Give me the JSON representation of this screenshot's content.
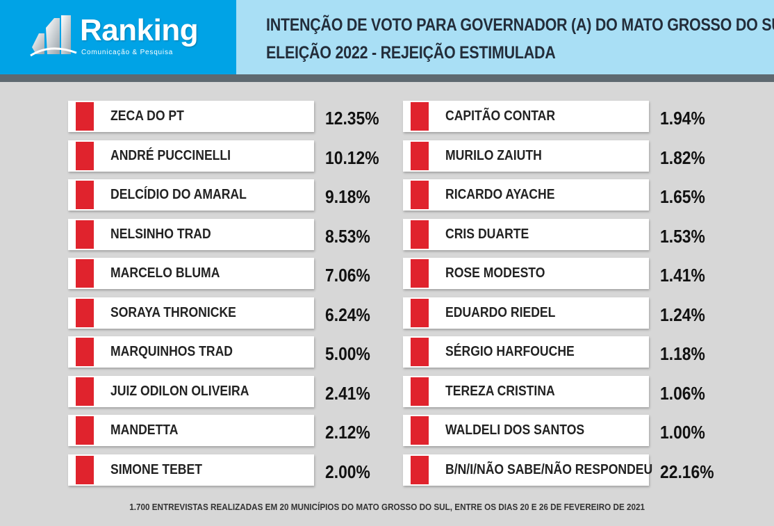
{
  "header": {
    "logo_text": "Ranking",
    "logo_tagline": "Comunicação & Pesquisa",
    "title_line1": "INTENÇÃO DE VOTO PARA GOVERNADOR (A) DO MATO GROSSO DO SUL",
    "title_line2": "ELEIÇÃO 2022 - REJEIÇÃO ESTIMULADA"
  },
  "colors": {
    "accent_red": "#e0232d",
    "logo_blue": "#00a3e6",
    "title_blue": "#a9dff5",
    "background": "#d7d7d7"
  },
  "left_column": [
    {
      "name": "ZECA DO PT",
      "value": "12.35%"
    },
    {
      "name": "ANDRÉ PUCCINELLI",
      "value": "10.12%"
    },
    {
      "name": "DELCÍDIO DO AMARAL",
      "value": "9.18%"
    },
    {
      "name": "NELSINHO TRAD",
      "value": "8.53%"
    },
    {
      "name": "MARCELO BLUMA",
      "value": "7.06%"
    },
    {
      "name": "SORAYA THRONICKE",
      "value": "6.24%"
    },
    {
      "name": "MARQUINHOS TRAD",
      "value": "5.00%"
    },
    {
      "name": "JUIZ ODILON OLIVEIRA",
      "value": "2.41%"
    },
    {
      "name": "MANDETTA",
      "value": "2.12%"
    },
    {
      "name": "SIMONE TEBET",
      "value": "2.00%"
    }
  ],
  "right_column": [
    {
      "name": "CAPITÃO CONTAR",
      "value": "1.94%"
    },
    {
      "name": "MURILO ZAIUTH",
      "value": "1.82%"
    },
    {
      "name": "RICARDO AYACHE",
      "value": "1.65%"
    },
    {
      "name": "CRIS DUARTE",
      "value": "1.53%"
    },
    {
      "name": "ROSE MODESTO",
      "value": "1.41%"
    },
    {
      "name": "EDUARDO RIEDEL",
      "value": "1.24%"
    },
    {
      "name": "SÉRGIO HARFOUCHE",
      "value": "1.18%"
    },
    {
      "name": "TEREZA CRISTINA",
      "value": "1.06%"
    },
    {
      "name": "WALDELI DOS SANTOS",
      "value": "1.00%"
    },
    {
      "name": "B/N/I/NÃO SABE/NÃO RESPONDEU",
      "value": "22.16%"
    }
  ],
  "footer": {
    "note": "1.700 ENTREVISTAS REALIZADAS EM 20 MUNICÍPIOS DO MATO GROSSO DO SUL, ENTRE OS  DIAS 20 E 26 DE FEVEREIRO DE 2021"
  }
}
